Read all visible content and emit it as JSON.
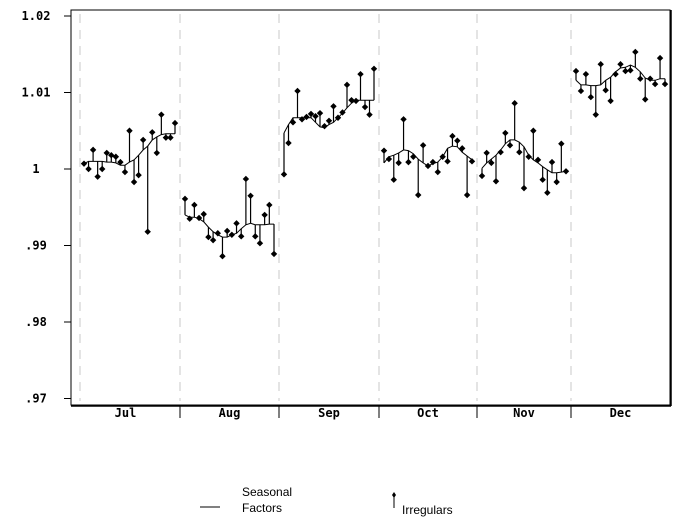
{
  "chart_data": {
    "type": "line",
    "title": "",
    "xlabel": "",
    "ylabel": "",
    "ylim": [
      0.97,
      1.02
    ],
    "y_ticks": [
      "1.02",
      "1.01",
      "1",
      ".99",
      ".98",
      ".97"
    ],
    "y_tick_values": [
      1.02,
      1.01,
      1.0,
      0.99,
      0.98,
      0.97
    ],
    "grid": "dashed vertical month separators",
    "legend_position": "bottom",
    "colors": {
      "line": "#000000",
      "separator": "#c8c8c8"
    },
    "legend": {
      "seasonal": [
        "Seasonal",
        "Factors"
      ],
      "irregular": "Irregulars"
    },
    "months": [
      {
        "label": "Jul",
        "seasonal": [
          1.0007,
          1.001,
          1.001,
          1.001,
          1.001,
          1.0009,
          1.0009,
          1.0008,
          1.0005,
          1.0005,
          1.0009,
          1.0012,
          1.0018,
          1.0025,
          1.003,
          1.0038,
          1.0042,
          1.0045,
          1.0046,
          1.0046,
          1.0046
        ],
        "irregular": [
          1.0007,
          1.0,
          1.0025,
          0.999,
          1.0,
          1.0021,
          1.0018,
          1.0016,
          1.0009,
          0.9996,
          1.005,
          0.9983,
          0.9992,
          1.0038,
          0.9918,
          1.0048,
          1.0021,
          1.0071,
          1.0041,
          1.0041,
          1.006
        ]
      },
      {
        "label": "Aug",
        "seasonal": [
          0.994,
          0.9937,
          0.9937,
          0.9935,
          0.9931,
          0.9924,
          0.9918,
          0.9914,
          0.9911,
          0.9911,
          0.9914,
          0.9916,
          0.9922,
          0.9927,
          0.9929,
          0.9927,
          0.9927,
          0.9927,
          0.9928,
          0.9928
        ],
        "irregular": [
          0.9961,
          0.9935,
          0.9953,
          0.9936,
          0.9941,
          0.9911,
          0.9907,
          0.9916,
          0.9886,
          0.9919,
          0.9914,
          0.9929,
          0.9912,
          0.9987,
          0.9965,
          0.9912,
          0.9903,
          0.994,
          0.9953,
          0.9889
        ]
      },
      {
        "label": "Sep",
        "seasonal": [
          1.0047,
          1.0058,
          1.0067,
          1.0067,
          1.0067,
          1.0067,
          1.0067,
          1.0061,
          1.0055,
          1.0054,
          1.0058,
          1.0061,
          1.0067,
          1.0073,
          1.008,
          1.0086,
          1.009,
          1.009,
          1.009,
          1.009,
          1.009
        ],
        "irregular": [
          0.9993,
          1.0034,
          1.0061,
          1.0102,
          1.0065,
          1.0068,
          1.0072,
          1.0069,
          1.0073,
          1.0056,
          1.0063,
          1.0082,
          1.0067,
          1.0074,
          1.011,
          1.009,
          1.0089,
          1.0124,
          1.0081,
          1.0071,
          1.0131
        ]
      },
      {
        "label": "Oct",
        "seasonal": [
          1.0008,
          1.0016,
          1.0018,
          1.0021,
          1.0025,
          1.0024,
          1.002,
          1.0013,
          1.0008,
          1.0004,
          1.0007,
          1.0009,
          1.0016,
          1.0027,
          1.003,
          1.0029,
          1.0022,
          1.0017,
          1.0012
        ],
        "irregular": [
          1.0024,
          1.0013,
          0.9986,
          1.0008,
          1.0065,
          1.0009,
          1.0016,
          0.9966,
          1.0031,
          1.0004,
          1.0009,
          0.9996,
          1.0016,
          1.001,
          1.0043,
          1.0037,
          1.0027,
          0.9966,
          1.001
        ]
      },
      {
        "label": "Nov",
        "seasonal": [
          1.0001,
          1.0008,
          1.0013,
          1.0018,
          1.0025,
          1.0033,
          1.0038,
          1.0038,
          1.0035,
          1.0029,
          1.0018,
          1.0012,
          1.0008,
          1.0003,
          0.9999,
          0.9995,
          0.9995,
          0.9996,
          0.9997
        ],
        "irregular": [
          0.9991,
          1.0021,
          1.0008,
          0.9984,
          1.0022,
          1.0047,
          1.0031,
          1.0086,
          1.0022,
          0.9975,
          1.0016,
          1.005,
          1.0012,
          0.9986,
          0.9969,
          1.0009,
          0.9983,
          1.0033,
          0.9997
        ]
      },
      {
        "label": "Dec",
        "seasonal": [
          1.0116,
          1.011,
          1.011,
          1.0109,
          1.0109,
          1.011,
          1.0116,
          1.012,
          1.0127,
          1.0132,
          1.0133,
          1.0136,
          1.0133,
          1.0127,
          1.0119,
          1.0116,
          1.0116,
          1.0118,
          1.0118
        ],
        "irregular": [
          1.0128,
          1.0102,
          1.0124,
          1.0094,
          1.0071,
          1.0137,
          1.0103,
          1.0089,
          1.0124,
          1.0137,
          1.0128,
          1.0129,
          1.0153,
          1.0118,
          1.0091,
          1.0118,
          1.0111,
          1.0145,
          1.0111
        ]
      }
    ]
  }
}
